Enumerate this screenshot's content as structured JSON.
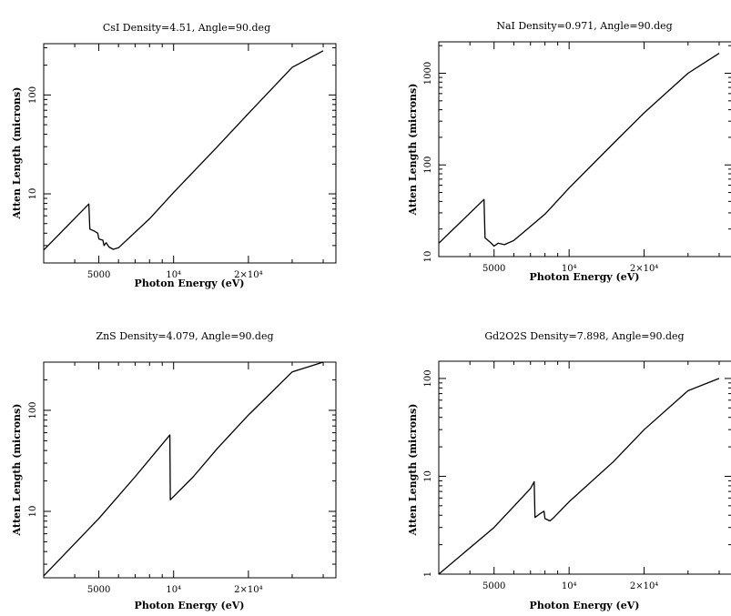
{
  "chart_data": [
    {
      "type": "line",
      "title": "CsI Density=4.51, Angle=90.deg",
      "xlabel": "Photon Energy (eV)",
      "ylabel": "Atten Length (microns)",
      "x_scale": "log",
      "y_scale": "log",
      "xlim": [
        3000,
        45000
      ],
      "ylim": [
        2.0,
        330
      ],
      "x_ticks": [
        {
          "value": 5000,
          "label": "5000"
        },
        {
          "value": 10000,
          "label": "10⁴"
        },
        {
          "value": 20000,
          "label": "2×10⁴"
        }
      ],
      "y_ticks": [
        {
          "value": 10,
          "label": "10"
        },
        {
          "value": 100,
          "label": "100"
        }
      ],
      "x": [
        3000,
        4557,
        4600,
        4800,
        4953,
        5000,
        5190,
        5250,
        5350,
        5500,
        5714,
        6000,
        8000,
        10000,
        15000,
        20000,
        30000,
        40000
      ],
      "y": [
        2.7,
        7.9,
        4.4,
        4.2,
        4.0,
        3.5,
        3.4,
        3.0,
        3.2,
        2.9,
        2.75,
        2.85,
        5.6,
        10.3,
        30,
        65,
        190,
        280
      ]
    },
    {
      "type": "line",
      "title": "NaI Density=0.971, Angle=90.deg",
      "xlabel": "Photon Energy (eV)",
      "ylabel": "Atten Length (microns)",
      "x_scale": "log",
      "y_scale": "log",
      "xlim": [
        3000,
        45000
      ],
      "ylim": [
        10,
        2200
      ],
      "x_ticks": [
        {
          "value": 5000,
          "label": "5000"
        },
        {
          "value": 10000,
          "label": "10⁴"
        },
        {
          "value": 20000,
          "label": "2×10⁴"
        }
      ],
      "y_ticks": [
        {
          "value": 10,
          "label": "10"
        },
        {
          "value": 100,
          "label": "100"
        },
        {
          "value": 1000,
          "label": "1000"
        }
      ],
      "x": [
        3000,
        4557,
        4600,
        4800,
        5000,
        5190,
        5500,
        6000,
        8000,
        10000,
        15000,
        20000,
        30000,
        40000
      ],
      "y": [
        14,
        42,
        16,
        14.5,
        13,
        14,
        13.5,
        15,
        29,
        56,
        170,
        370,
        1000,
        1650
      ]
    },
    {
      "type": "line",
      "title": "ZnS Density=4.079, Angle=90.deg",
      "xlabel": "Photon Energy (eV)",
      "ylabel": "Atten Length (microns)",
      "x_scale": "log",
      "y_scale": "log",
      "xlim": [
        3000,
        45000
      ],
      "ylim": [
        2.2,
        300
      ],
      "x_ticks": [
        {
          "value": 5000,
          "label": "5000"
        },
        {
          "value": 10000,
          "label": "10⁴"
        },
        {
          "value": 20000,
          "label": "2×10⁴"
        }
      ],
      "y_ticks": [
        {
          "value": 10,
          "label": "10"
        },
        {
          "value": 100,
          "label": "100"
        }
      ],
      "x": [
        3000,
        5000,
        7000,
        9659,
        9700,
        12000,
        15000,
        20000,
        30000,
        40000
      ],
      "y": [
        2.3,
        8.5,
        22,
        57,
        13,
        22,
        42,
        90,
        240,
        300
      ]
    },
    {
      "type": "line",
      "title": "Gd2O2S Density=7.898, Angle=90.deg",
      "xlabel": "Photon Energy (eV)",
      "ylabel": "Atten Length (microns)",
      "x_scale": "log",
      "y_scale": "log",
      "xlim": [
        3000,
        45000
      ],
      "ylim": [
        1.0,
        150
      ],
      "x_ticks": [
        {
          "value": 5000,
          "label": "5000"
        },
        {
          "value": 10000,
          "label": "10⁴"
        },
        {
          "value": 20000,
          "label": "2×10⁴"
        }
      ],
      "y_ticks": [
        {
          "value": 1,
          "label": "1"
        },
        {
          "value": 10,
          "label": "10"
        },
        {
          "value": 100,
          "label": "100"
        }
      ],
      "x": [
        3000,
        5000,
        7000,
        7243,
        7300,
        7600,
        7930,
        8000,
        8376,
        8600,
        10000,
        15000,
        20000,
        30000,
        40000
      ],
      "y": [
        1.0,
        3.0,
        7.5,
        8.8,
        3.8,
        4.1,
        4.4,
        3.7,
        3.5,
        3.7,
        5.5,
        14,
        30,
        75,
        100
      ]
    }
  ]
}
